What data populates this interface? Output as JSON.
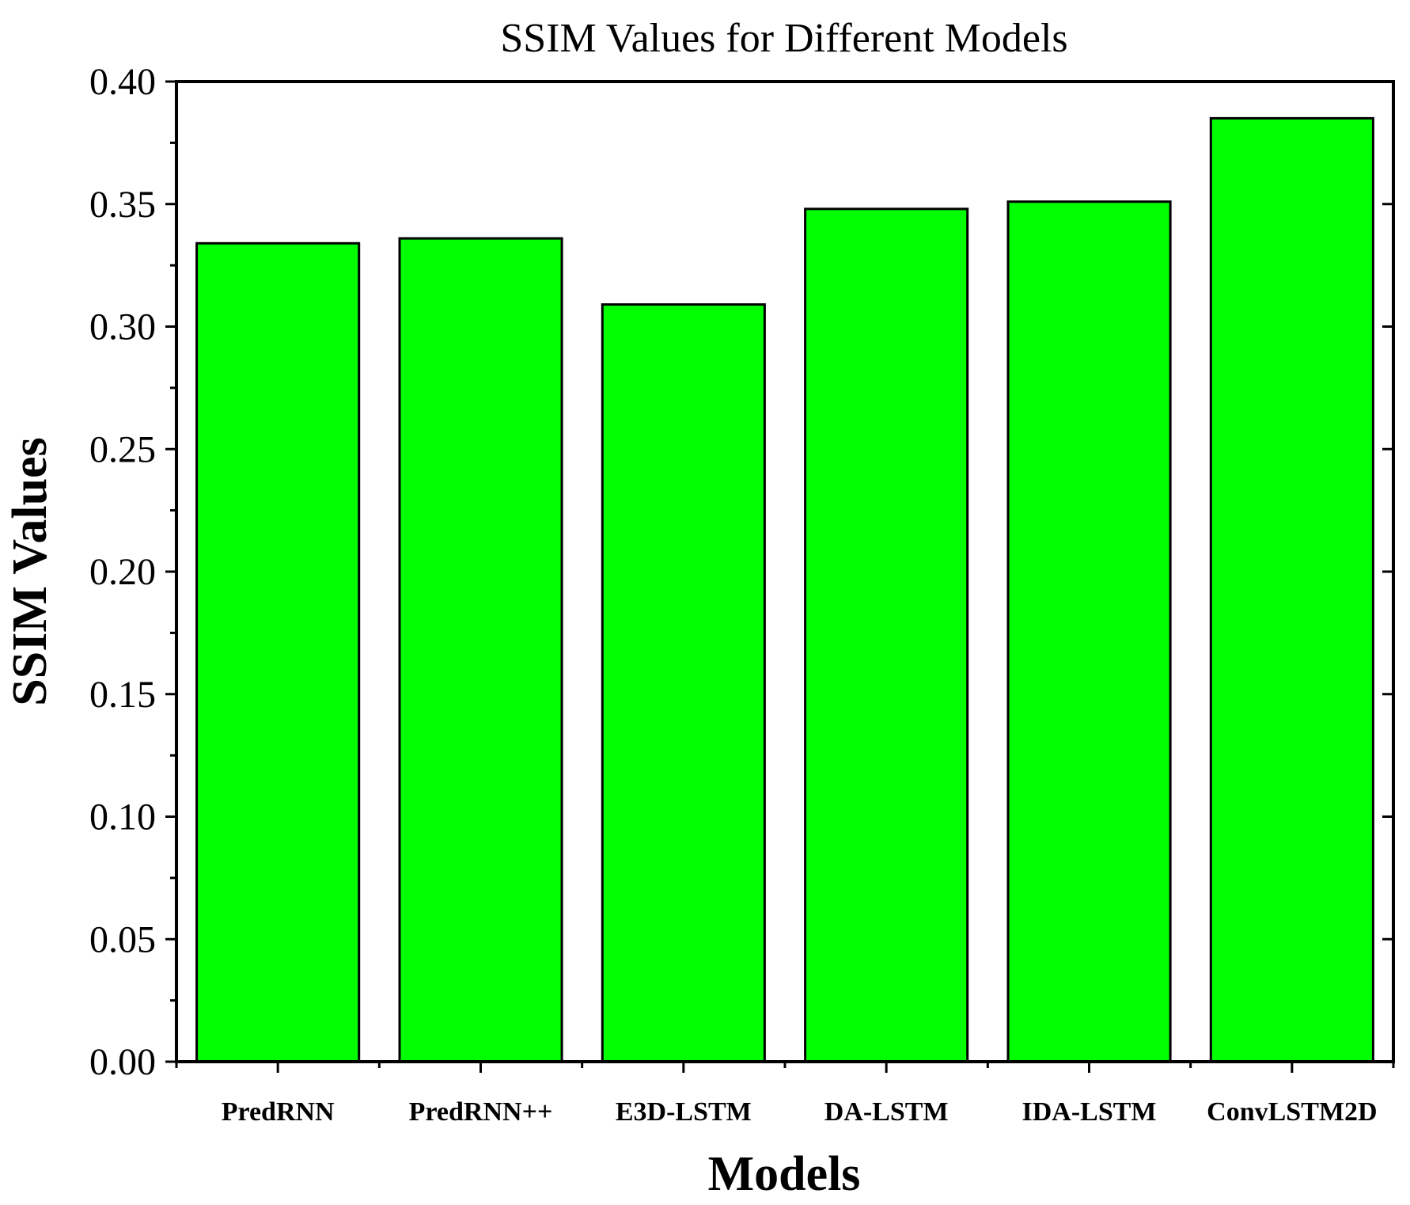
{
  "chart_data": {
    "type": "bar",
    "title": "SSIM Values for Different Models",
    "xlabel": "Models",
    "ylabel": "SSIM Values",
    "categories": [
      "PredRNN",
      "PredRNN++",
      "E3D-LSTM",
      "DA-LSTM",
      "IDA-LSTM",
      "ConvLSTM2D"
    ],
    "values": [
      0.334,
      0.336,
      0.309,
      0.348,
      0.351,
      0.385
    ],
    "ylim": [
      0.0,
      0.4
    ],
    "yticks": [
      "0.00",
      "0.05",
      "0.10",
      "0.15",
      "0.20",
      "0.25",
      "0.30",
      "0.35",
      "0.40"
    ],
    "grid": false,
    "bar_color": "#00ff00",
    "edge_color": "#000000"
  }
}
